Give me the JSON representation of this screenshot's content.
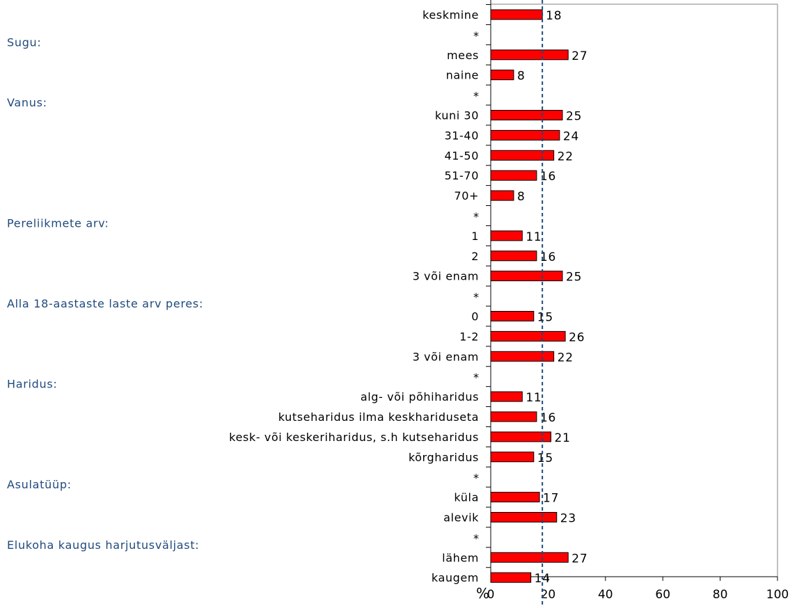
{
  "chart_data": {
    "type": "bar",
    "orientation": "horizontal",
    "unit_label": "%",
    "xlim": [
      0,
      100
    ],
    "x_ticks": [
      0,
      20,
      40,
      60,
      80,
      100
    ],
    "reference_line": {
      "value": 18,
      "style": "dashed"
    },
    "colors": {
      "bar_fill": "#ff0000",
      "bar_stroke": "#000000",
      "group_label": "#1f497d",
      "reference_line": "#1f497d",
      "frame": "#808080",
      "text": "#000000"
    },
    "groups": [
      {
        "label": "",
        "categories": [
          {
            "label": "keskmine",
            "value": 18
          }
        ]
      },
      {
        "label": "Sugu:",
        "categories": [
          {
            "label": "mees",
            "value": 27
          },
          {
            "label": "naine",
            "value": 8
          }
        ]
      },
      {
        "label": "Vanus:",
        "categories": [
          {
            "label": "kuni 30",
            "value": 25
          },
          {
            "label": "31-40",
            "value": 24
          },
          {
            "label": "41-50",
            "value": 22
          },
          {
            "label": "51-70",
            "value": 16
          },
          {
            "label": "70+",
            "value": 8
          }
        ]
      },
      {
        "label": "Pereliikmete arv:",
        "categories": [
          {
            "label": "1",
            "value": 11
          },
          {
            "label": "2",
            "value": 16
          },
          {
            "label": "3 või enam",
            "value": 25
          }
        ]
      },
      {
        "label": "Alla 18-aastaste laste arv peres:",
        "categories": [
          {
            "label": "0",
            "value": 15
          },
          {
            "label": "1-2",
            "value": 26
          },
          {
            "label": "3 või enam",
            "value": 22
          }
        ]
      },
      {
        "label": "Haridus:",
        "categories": [
          {
            "label": "alg- või  põhiharidus",
            "value": 11
          },
          {
            "label": "kutseharidus ilma keskhariduseta",
            "value": 16
          },
          {
            "label": "kesk- või keskeriharidus, s.h kutseharidus",
            "value": 21
          },
          {
            "label": "kõrgharidus",
            "value": 15
          }
        ]
      },
      {
        "label": "Asulatüüp:",
        "categories": [
          {
            "label": "küla",
            "value": 17
          },
          {
            "label": "alevik",
            "value": 23
          }
        ]
      },
      {
        "label": "Elukoha kaugus harjutusväljast:",
        "categories": [
          {
            "label": "lähem",
            "value": 27
          },
          {
            "label": "kaugem",
            "value": 14
          }
        ]
      }
    ],
    "separator_label": "*"
  }
}
